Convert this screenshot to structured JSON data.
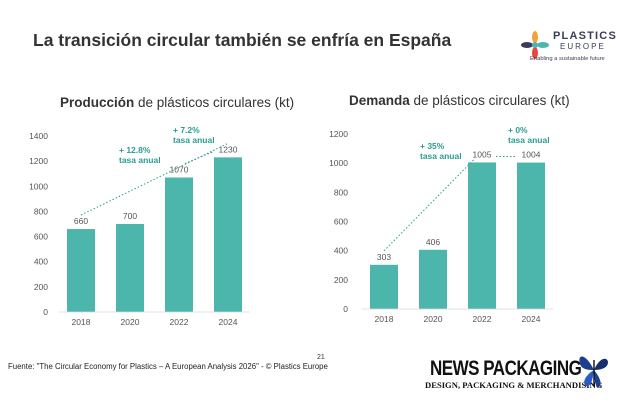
{
  "title": "La transición circular también se enfría en España",
  "logo": {
    "name_line1": "PLASTICS",
    "name_line2": "EUROPE",
    "tagline": "Enabling a sustainable future",
    "colors": [
      "#4db6ac",
      "#e8463e",
      "#f2a33a",
      "#3b3b5a"
    ]
  },
  "footer": "Fuente: \"The Circular Economy for Plastics – A European Analysis 2026\" - © Plastics Europe",
  "page_number": "21",
  "news_packaging": {
    "title": "NEWS PACKAGING",
    "subtitle": "DESIGN, PACKAGING & MERCHANDISING"
  },
  "charts": [
    {
      "title_bold": "Producción",
      "title_rest": " de plásticos circulares (kt)",
      "annotations": [
        {
          "text_line1": "+ 12.8%",
          "text_line2": "tasa anual"
        },
        {
          "text_line1": "+ 7.2%",
          "text_line2": "tasa anual"
        }
      ]
    },
    {
      "title_bold": "Demanda",
      "title_rest": " de plásticos circulares (kt)",
      "annotations": [
        {
          "text_line1": "+ 35%",
          "text_line2": "tasa anual"
        },
        {
          "text_line1": "+ 0%",
          "text_line2": "tasa anual"
        }
      ]
    }
  ],
  "chart_data": [
    {
      "type": "bar",
      "title": "Producción de plásticos circulares (kt)",
      "categories": [
        "2018",
        "2020",
        "2022",
        "2024"
      ],
      "values": [
        660,
        700,
        1070,
        1230
      ],
      "ylim": [
        0,
        1400
      ],
      "yticks": [
        0,
        200,
        400,
        600,
        800,
        1000,
        1200,
        1400
      ],
      "bar_color": "#4db6ac",
      "annotation_color": "#2a9d8f",
      "grid": false
    },
    {
      "type": "bar",
      "title": "Demanda de plásticos circulares (kt)",
      "categories": [
        "2018",
        "2020",
        "2022",
        "2024"
      ],
      "values": [
        303,
        406,
        1005,
        1004
      ],
      "ylim": [
        0,
        1200
      ],
      "yticks": [
        0,
        200,
        400,
        600,
        800,
        1000,
        1200
      ],
      "bar_color": "#4db6ac",
      "annotation_color": "#2a9d8f",
      "grid": false
    }
  ]
}
